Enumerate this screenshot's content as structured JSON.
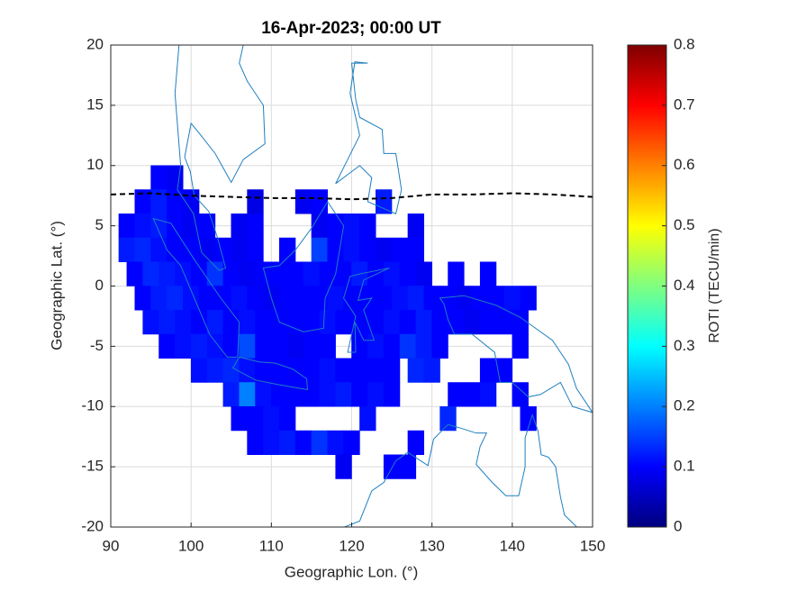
{
  "chart_data": {
    "type": "map",
    "title": "16-Apr-2023; 00:00 UT",
    "xlabel": "Geographic Lon. (°)",
    "ylabel": "Geographic Lat. (°)",
    "xlim": [
      90,
      150
    ],
    "ylim": [
      -20,
      20
    ],
    "xticks": [
      90,
      100,
      110,
      120,
      130,
      140,
      150
    ],
    "yticks": [
      -20,
      -15,
      -10,
      -5,
      0,
      5,
      10,
      15,
      20
    ],
    "grid": true,
    "colormap": "jet",
    "colorbar": {
      "label": "ROTI (TECU/min)",
      "clim": [
        0,
        0.8
      ],
      "ticks": [
        0,
        0.1,
        0.2,
        0.3,
        0.4,
        0.5,
        0.6,
        0.7,
        0.8
      ]
    },
    "x": [
      96,
      98,
      94,
      96,
      98,
      100,
      108,
      114,
      116,
      124,
      92,
      94,
      96,
      98,
      100,
      102,
      106,
      108,
      116,
      118,
      120,
      122,
      128,
      92,
      94,
      96,
      98,
      100,
      102,
      104,
      106,
      108,
      112,
      116,
      118,
      120,
      122,
      124,
      126,
      128,
      93,
      95,
      97,
      99,
      101,
      103,
      105,
      107,
      109,
      111,
      113,
      115,
      117,
      119,
      121,
      123,
      125,
      127,
      129,
      133,
      137,
      94,
      96,
      98,
      100,
      102,
      104,
      106,
      108,
      110,
      112,
      114,
      116,
      118,
      120,
      122,
      124,
      126,
      128,
      130,
      132,
      134,
      136,
      138,
      140,
      142,
      95,
      97,
      99,
      101,
      103,
      105,
      107,
      109,
      111,
      113,
      115,
      117,
      119,
      121,
      123,
      125,
      127,
      129,
      131,
      133,
      135,
      137,
      139,
      141,
      97,
      99,
      101,
      103,
      105,
      107,
      109,
      111,
      113,
      115,
      117,
      121,
      123,
      125,
      127,
      129,
      131,
      141,
      101,
      103,
      105,
      107,
      109,
      111,
      113,
      115,
      117,
      119,
      121,
      123,
      125,
      128,
      130,
      137,
      139,
      105,
      107,
      109,
      111,
      113,
      115,
      117,
      119,
      121,
      123,
      125,
      133,
      135,
      137,
      141,
      106,
      108,
      110,
      112,
      122,
      132,
      142,
      108,
      110,
      112,
      114,
      116,
      118,
      120,
      128,
      119,
      125,
      127
    ],
    "y": [
      9,
      9,
      7,
      7,
      7,
      7,
      7,
      7,
      7,
      7,
      5,
      5,
      5,
      5,
      5,
      5,
      5,
      5,
      5,
      5,
      5,
      5,
      5,
      3,
      3,
      3,
      3,
      3,
      3,
      3,
      3,
      3,
      3,
      3,
      3,
      3,
      3,
      3,
      3,
      3,
      1,
      1,
      1,
      1,
      1,
      1,
      1,
      1,
      1,
      1,
      1,
      1,
      1,
      1,
      1,
      1,
      1,
      1,
      1,
      1,
      1,
      -1,
      -1,
      -1,
      -1,
      -1,
      -1,
      -1,
      -1,
      -1,
      -1,
      -1,
      -1,
      -1,
      -1,
      -1,
      -1,
      -1,
      -1,
      -1,
      -1,
      -1,
      -1,
      -1,
      -1,
      -1,
      -3,
      -3,
      -3,
      -3,
      -3,
      -3,
      -3,
      -3,
      -3,
      -3,
      -3,
      -3,
      -3,
      -3,
      -3,
      -3,
      -3,
      -3,
      -3,
      -3,
      -3,
      -3,
      -3,
      -3,
      -5,
      -5,
      -5,
      -5,
      -5,
      -5,
      -5,
      -5,
      -5,
      -5,
      -5,
      -5,
      -5,
      -5,
      -5,
      -5,
      -5,
      -5,
      -7,
      -7,
      -7,
      -7,
      -7,
      -7,
      -7,
      -7,
      -7,
      -7,
      -7,
      -7,
      -7,
      -7,
      -7,
      -7,
      -7,
      -9,
      -9,
      -9,
      -9,
      -9,
      -9,
      -9,
      -9,
      -9,
      -9,
      -9,
      -9,
      -9,
      -9,
      -9,
      -11,
      -11,
      -11,
      -11,
      -11,
      -11,
      -11,
      -13,
      -13,
      -13,
      -13,
      -13,
      -13,
      -13,
      -13,
      -15,
      -15,
      -15
    ],
    "values": [
      0.1,
      0.09,
      0.1,
      0.12,
      0.1,
      0.09,
      0.08,
      0.09,
      0.1,
      0.12,
      0.1,
      0.11,
      0.12,
      0.1,
      0.09,
      0.1,
      0.09,
      0.1,
      0.09,
      0.1,
      0.11,
      0.1,
      0.09,
      0.12,
      0.13,
      0.11,
      0.1,
      0.1,
      0.09,
      0.1,
      0.09,
      0.1,
      0.1,
      0.15,
      0.1,
      0.11,
      0.1,
      0.09,
      0.1,
      0.1,
      0.1,
      0.13,
      0.12,
      0.11,
      0.1,
      0.14,
      0.1,
      0.09,
      0.1,
      0.1,
      0.1,
      0.11,
      0.1,
      0.1,
      0.12,
      0.1,
      0.11,
      0.1,
      0.09,
      0.1,
      0.1,
      0.1,
      0.12,
      0.13,
      0.11,
      0.1,
      0.1,
      0.11,
      0.1,
      0.09,
      0.1,
      0.1,
      0.1,
      0.11,
      0.1,
      0.1,
      0.1,
      0.11,
      0.12,
      0.1,
      0.1,
      0.09,
      0.1,
      0.1,
      0.11,
      0.1,
      0.11,
      0.12,
      0.11,
      0.1,
      0.12,
      0.1,
      0.11,
      0.1,
      0.1,
      0.1,
      0.1,
      0.11,
      0.1,
      0.1,
      0.1,
      0.11,
      0.1,
      0.12,
      0.1,
      0.1,
      0.09,
      0.1,
      0.1,
      0.1,
      0.1,
      0.11,
      0.12,
      0.11,
      0.1,
      0.16,
      0.1,
      0.1,
      0.09,
      0.1,
      0.1,
      0.1,
      0.11,
      0.1,
      0.14,
      0.12,
      0.1,
      0.1,
      0.11,
      0.12,
      0.13,
      0.11,
      0.1,
      0.1,
      0.1,
      0.1,
      0.11,
      0.1,
      0.1,
      0.1,
      0.1,
      0.13,
      0.12,
      0.1,
      0.1,
      0.12,
      0.2,
      0.11,
      0.1,
      0.1,
      0.1,
      0.11,
      0.12,
      0.1,
      0.11,
      0.1,
      0.1,
      0.1,
      0.11,
      0.1,
      0.1,
      0.1,
      0.11,
      0.1,
      0.11,
      0.13,
      0.1,
      0.1,
      0.11,
      0.12,
      0.1,
      0.14,
      0.11,
      0.1,
      0.1,
      0.09,
      0.1,
      0.1
    ],
    "boundary": {
      "x": [
        90,
        95,
        100,
        105,
        110,
        115,
        120,
        125,
        130,
        135,
        140,
        145,
        150
      ],
      "y": [
        7.6,
        7.7,
        7.5,
        7.4,
        7.3,
        7.3,
        7.2,
        7.3,
        7.6,
        7.6,
        7.7,
        7.6,
        7.4
      ],
      "color": "#000000",
      "dashed": true
    }
  }
}
